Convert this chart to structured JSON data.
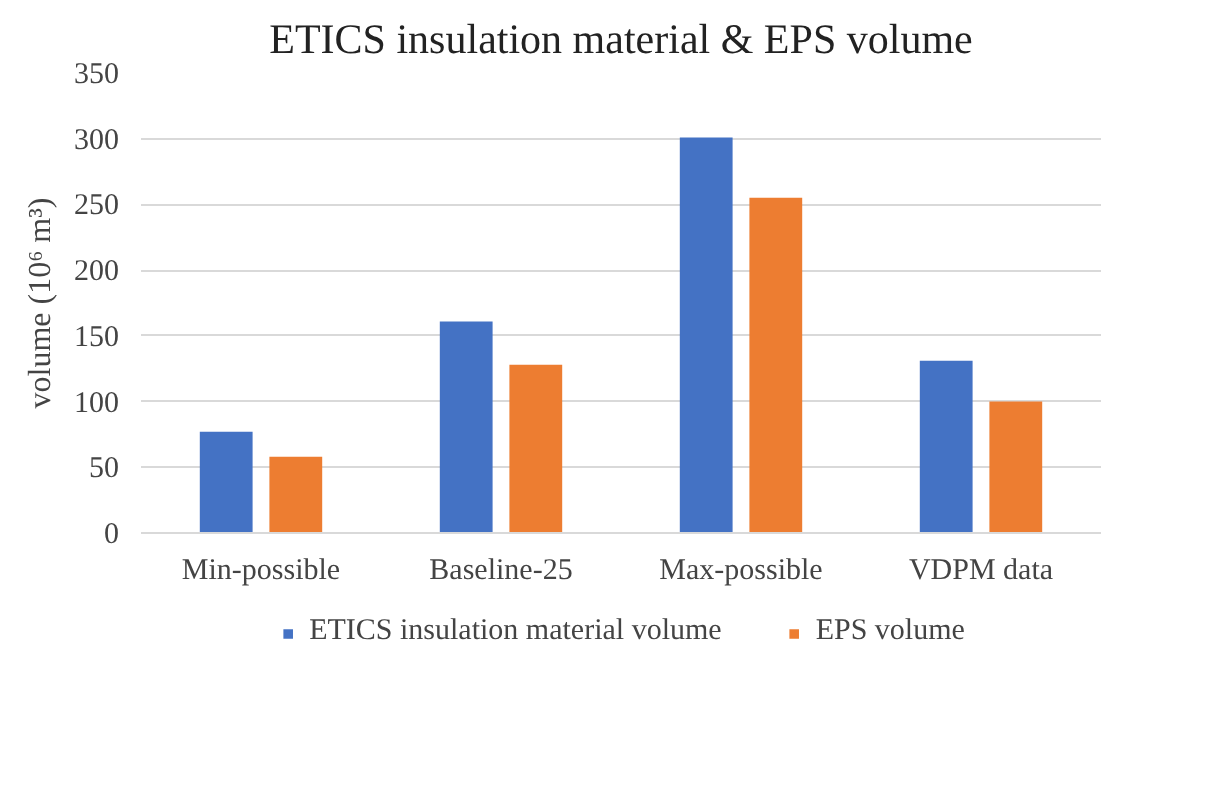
{
  "chart_data": {
    "type": "bar",
    "title": "ETICS insulation material & EPS volume",
    "ylabel": "volume (10⁶ m³)",
    "categories": [
      "Min-possible",
      "Baseline-25",
      "Max-possible",
      "VDPM data"
    ],
    "series": [
      {
        "name": "ETICS insulation material volume",
        "color": "#4472c4",
        "values": [
          77,
          161,
          301,
          131
        ]
      },
      {
        "name": "EPS volume",
        "color": "#ed7d31",
        "values": [
          58,
          128,
          255,
          100
        ]
      }
    ],
    "ylim": [
      0,
      350
    ],
    "yticks": [
      0,
      50,
      100,
      150,
      200,
      250,
      300,
      350
    ],
    "grid": "y",
    "legend": "bottom"
  }
}
